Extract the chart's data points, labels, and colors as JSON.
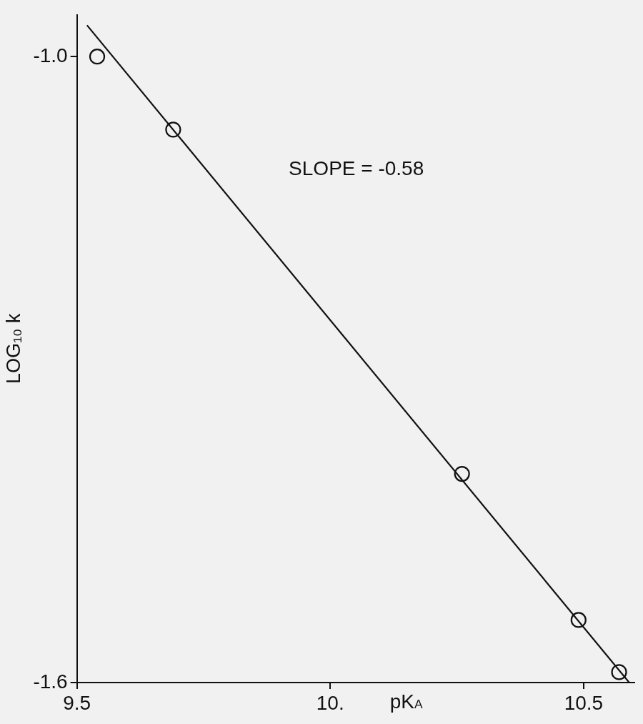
{
  "chart_data": {
    "type": "scatter",
    "xlabel": "pK$_{A}$",
    "ylabel": "LOG₁₀ k",
    "annotations": [
      "SLOPE = -0.58"
    ],
    "xlim": [
      9.5,
      10.6
    ],
    "xticks": [
      9.5,
      {
        "value": 10,
        "label": "10."
      },
      10.5
    ],
    "ylim": [
      -1.6,
      -0.96
    ],
    "yticks": [
      -1.6,
      {
        "value": -1.0,
        "label": "-1.0"
      }
    ],
    "marker": "circle",
    "series": [
      {
        "color": "#111111",
        "x": [
          9.54,
          9.69,
          10.26,
          10.49,
          10.57
        ],
        "values": [
          -1.0,
          -1.07,
          -1.4,
          -1.54,
          -1.59
        ]
      },
      {
        "type": "line",
        "color": "#111111",
        "marker": "none",
        "line_style": "solid",
        "x": [
          9.52,
          10.59
        ],
        "values": [
          -0.97,
          -1.6
        ]
      }
    ]
  }
}
